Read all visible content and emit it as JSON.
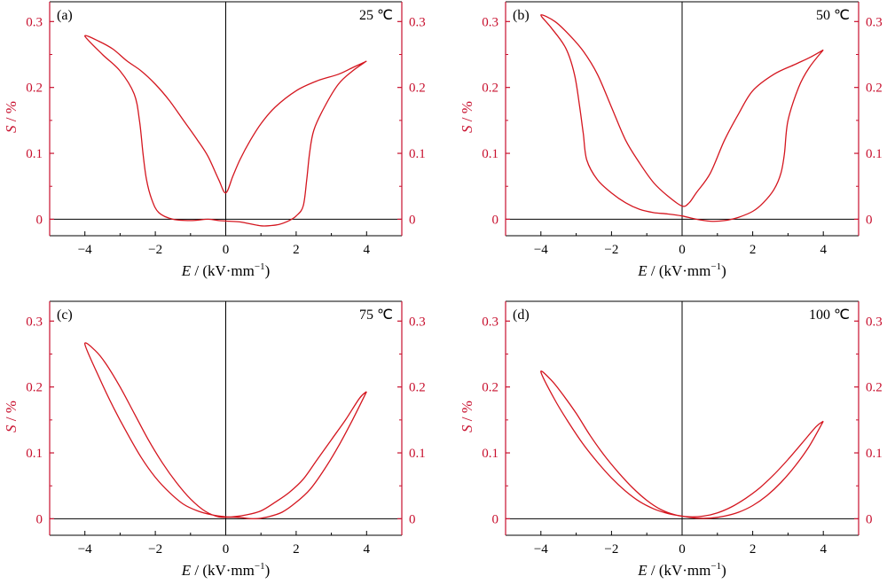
{
  "colors": {
    "curve": "#d4161f",
    "axis_red": "#c8102e",
    "axis_black": "#000000",
    "frame": "#000000"
  },
  "shared": {
    "xlabel_var": "E",
    "xlabel_unit": " / (kV·mm",
    "xlabel_exp": "−1",
    "xlabel_close": ")",
    "ylabel_var": "S",
    "ylabel_unit": " / %"
  },
  "chart_data": [
    {
      "type": "line",
      "panel_label": "(a)",
      "temperature": "25 ℃",
      "xlim": [
        -5,
        5
      ],
      "ylim": [
        -0.025,
        0.33
      ],
      "x_ticks": [
        "−4",
        "−2",
        "0",
        "2",
        "4"
      ],
      "x_tick_values": [
        -4,
        -2,
        0,
        2,
        4
      ],
      "y_ticks": [
        "0",
        "0.1",
        "0.2",
        "0.3"
      ],
      "y_tick_values": [
        0,
        0.1,
        0.2,
        0.3
      ],
      "x": [
        4.0,
        3.6,
        3.2,
        2.8,
        2.5,
        2.38,
        2.3,
        2.2,
        2.0,
        1.8,
        1.5,
        1.2,
        1.0,
        0.7,
        0.4,
        0.1,
        -0.2,
        -0.5,
        -1.0,
        -1.5,
        -1.9,
        -2.1,
        -2.25,
        -2.35,
        -2.45,
        -2.6,
        -3.0,
        -3.5,
        -4.0,
        -3.6,
        -3.2,
        -2.8,
        -2.4,
        -2.0,
        -1.6,
        -1.2,
        -0.8,
        -0.5,
        -0.2,
        0.0,
        0.2,
        0.4,
        0.7,
        1.0,
        1.4,
        2.0,
        2.6,
        3.2,
        3.6,
        4.0
      ],
      "y": [
        0.24,
        0.225,
        0.205,
        0.17,
        0.135,
        0.1,
        0.06,
        0.02,
        0.005,
        -0.002,
        -0.008,
        -0.01,
        -0.01,
        -0.007,
        -0.004,
        -0.003,
        -0.002,
        0.0,
        -0.002,
        0.0,
        0.01,
        0.03,
        0.06,
        0.1,
        0.15,
        0.19,
        0.225,
        0.25,
        0.278,
        0.27,
        0.258,
        0.24,
        0.225,
        0.205,
        0.18,
        0.15,
        0.12,
        0.095,
        0.06,
        0.04,
        0.065,
        0.09,
        0.12,
        0.145,
        0.17,
        0.195,
        0.21,
        0.22,
        0.23,
        0.24
      ]
    },
    {
      "type": "line",
      "panel_label": "(b)",
      "temperature": "50 ℃",
      "xlim": [
        -5,
        5
      ],
      "ylim": [
        -0.025,
        0.33
      ],
      "x_ticks": [
        "−4",
        "−2",
        "0",
        "2",
        "4"
      ],
      "x_tick_values": [
        -4,
        -2,
        0,
        2,
        4
      ],
      "y_ticks": [
        "0",
        "0.1",
        "0.2",
        "0.3"
      ],
      "y_tick_values": [
        0,
        0.1,
        0.2,
        0.3
      ],
      "x": [
        4.0,
        3.6,
        3.3,
        3.0,
        2.9,
        2.8,
        2.6,
        2.3,
        2.0,
        1.6,
        1.2,
        0.8,
        0.4,
        0.0,
        -0.4,
        -0.8,
        -1.2,
        -1.6,
        -2.0,
        -2.4,
        -2.7,
        -2.8,
        -2.9,
        -3.05,
        -3.3,
        -3.7,
        -4.0,
        -3.6,
        -3.2,
        -2.8,
        -2.4,
        -2.0,
        -1.6,
        -1.2,
        -0.8,
        -0.4,
        0.0,
        0.2,
        0.4,
        0.8,
        1.2,
        1.6,
        2.0,
        2.6,
        3.2,
        3.6,
        4.0
      ],
      "y": [
        0.257,
        0.23,
        0.2,
        0.15,
        0.1,
        0.07,
        0.045,
        0.025,
        0.012,
        0.003,
        -0.002,
        -0.003,
        0.0,
        0.005,
        0.008,
        0.01,
        0.015,
        0.025,
        0.04,
        0.06,
        0.09,
        0.13,
        0.17,
        0.22,
        0.26,
        0.29,
        0.31,
        0.3,
        0.28,
        0.255,
        0.22,
        0.17,
        0.12,
        0.085,
        0.055,
        0.035,
        0.02,
        0.025,
        0.04,
        0.07,
        0.12,
        0.16,
        0.195,
        0.22,
        0.235,
        0.245,
        0.257
      ]
    },
    {
      "type": "line",
      "panel_label": "(c)",
      "temperature": "75 ℃",
      "xlim": [
        -5,
        5
      ],
      "ylim": [
        -0.025,
        0.33
      ],
      "x_ticks": [
        "−4",
        "−2",
        "0",
        "2",
        "4"
      ],
      "x_tick_values": [
        -4,
        -2,
        0,
        2,
        4
      ],
      "y_ticks": [
        "0",
        "0.1",
        "0.2",
        "0.3"
      ],
      "y_tick_values": [
        0,
        0.1,
        0.2,
        0.3
      ],
      "x": [
        4.0,
        3.6,
        3.2,
        2.8,
        2.4,
        2.0,
        1.6,
        1.2,
        0.8,
        0.4,
        0.0,
        -0.4,
        -0.8,
        -1.2,
        -1.6,
        -2.0,
        -2.4,
        -2.8,
        -3.2,
        -3.6,
        -4.0,
        -3.7,
        -3.4,
        -3.0,
        -2.6,
        -2.2,
        -1.8,
        -1.4,
        -1.0,
        -0.6,
        -0.2,
        0.2,
        0.6,
        1.0,
        1.4,
        1.8,
        2.2,
        2.6,
        3.0,
        3.4,
        3.8,
        4.0
      ],
      "y": [
        0.193,
        0.15,
        0.11,
        0.075,
        0.045,
        0.025,
        0.01,
        0.003,
        0.0,
        0.002,
        0.003,
        0.006,
        0.012,
        0.022,
        0.04,
        0.063,
        0.093,
        0.13,
        0.17,
        0.215,
        0.265,
        0.255,
        0.235,
        0.2,
        0.16,
        0.12,
        0.085,
        0.055,
        0.03,
        0.012,
        0.003,
        0.003,
        0.006,
        0.012,
        0.025,
        0.04,
        0.06,
        0.09,
        0.12,
        0.15,
        0.183,
        0.193
      ]
    },
    {
      "type": "line",
      "panel_label": "(d)",
      "temperature": "100 ℃",
      "xlim": [
        -5,
        5
      ],
      "ylim": [
        -0.025,
        0.33
      ],
      "x_ticks": [
        "−4",
        "−2",
        "0",
        "2",
        "4"
      ],
      "x_tick_values": [
        -4,
        -2,
        0,
        2,
        4
      ],
      "y_ticks": [
        "0",
        "0.1",
        "0.2",
        "0.3"
      ],
      "y_tick_values": [
        0,
        0.1,
        0.2,
        0.3
      ],
      "x": [
        4.0,
        3.6,
        3.2,
        2.8,
        2.4,
        2.0,
        1.6,
        1.2,
        0.8,
        0.4,
        0.0,
        -0.4,
        -0.8,
        -1.2,
        -1.6,
        -2.0,
        -2.4,
        -2.8,
        -3.2,
        -3.6,
        -4.0,
        -3.7,
        -3.4,
        -3.0,
        -2.6,
        -2.2,
        -1.8,
        -1.4,
        -1.0,
        -0.6,
        -0.2,
        0.2,
        0.6,
        1.0,
        1.4,
        1.8,
        2.2,
        2.6,
        3.0,
        3.4,
        3.8,
        4.0
      ],
      "y": [
        0.148,
        0.11,
        0.08,
        0.055,
        0.035,
        0.02,
        0.01,
        0.004,
        0.001,
        0.001,
        0.004,
        0.008,
        0.015,
        0.026,
        0.042,
        0.062,
        0.086,
        0.113,
        0.145,
        0.18,
        0.223,
        0.21,
        0.19,
        0.16,
        0.126,
        0.096,
        0.07,
        0.047,
        0.028,
        0.014,
        0.006,
        0.003,
        0.004,
        0.009,
        0.018,
        0.031,
        0.047,
        0.067,
        0.09,
        0.115,
        0.14,
        0.148
      ]
    }
  ]
}
